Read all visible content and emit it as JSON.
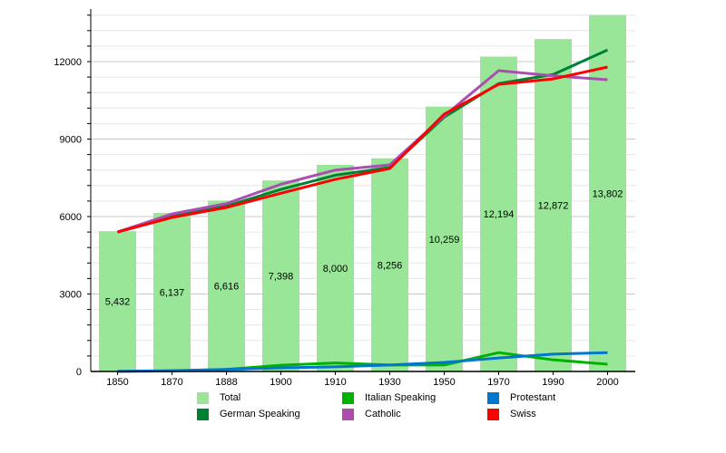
{
  "chart_data": {
    "type": "bar+line",
    "categories": [
      "1850",
      "1870",
      "1888",
      "1900",
      "1910",
      "1930",
      "1950",
      "1970",
      "1990",
      "2000"
    ],
    "ylim": [
      0,
      14000
    ],
    "yticks": [
      0,
      3000,
      6000,
      9000,
      12000
    ],
    "ytick_labels": [
      "0",
      "3000",
      "6000",
      "9000",
      "12000"
    ],
    "grid": true,
    "legend_position": "bottom",
    "bars": {
      "name": "Total",
      "color": "#99e699",
      "values": [
        5432,
        6137,
        6616,
        7398,
        8000,
        8256,
        10259,
        12194,
        12872,
        13802
      ],
      "labels": [
        "5,432",
        "6,137",
        "6,616",
        "7,398",
        "8,000",
        "8,256",
        "10,259",
        "12,194",
        "12,872",
        "13,802"
      ]
    },
    "series": [
      {
        "name": "German Speaking",
        "color": "#008033",
        "values": [
          5400,
          6000,
          6400,
          7050,
          7600,
          7900,
          9850,
          11150,
          11500,
          12450
        ]
      },
      {
        "name": "Italian Speaking",
        "color": "#00b300",
        "values": [
          0,
          20,
          80,
          240,
          330,
          250,
          250,
          730,
          450,
          280
        ]
      },
      {
        "name": "Catholic",
        "color": "#aa4fb0",
        "values": [
          5400,
          6100,
          6500,
          7250,
          7800,
          8000,
          9900,
          11650,
          11450,
          11300
        ]
      },
      {
        "name": "Protestant",
        "color": "#0077cc",
        "values": [
          10,
          30,
          80,
          140,
          180,
          250,
          350,
          520,
          670,
          730
        ]
      },
      {
        "name": "Swiss",
        "color": "#ff0000",
        "values": [
          5400,
          5965,
          6350,
          6900,
          7440,
          7860,
          9965,
          11120,
          11330,
          11790
        ]
      }
    ],
    "legend": [
      {
        "label": "Total",
        "color": "#99e699"
      },
      {
        "label": "Italian Speaking",
        "color": "#00b300"
      },
      {
        "label": "Protestant",
        "color": "#0077cc"
      },
      {
        "label": "German Speaking",
        "color": "#008033"
      },
      {
        "label": "Catholic",
        "color": "#aa4fb0"
      },
      {
        "label": "Swiss",
        "color": "#ff0000"
      }
    ]
  }
}
